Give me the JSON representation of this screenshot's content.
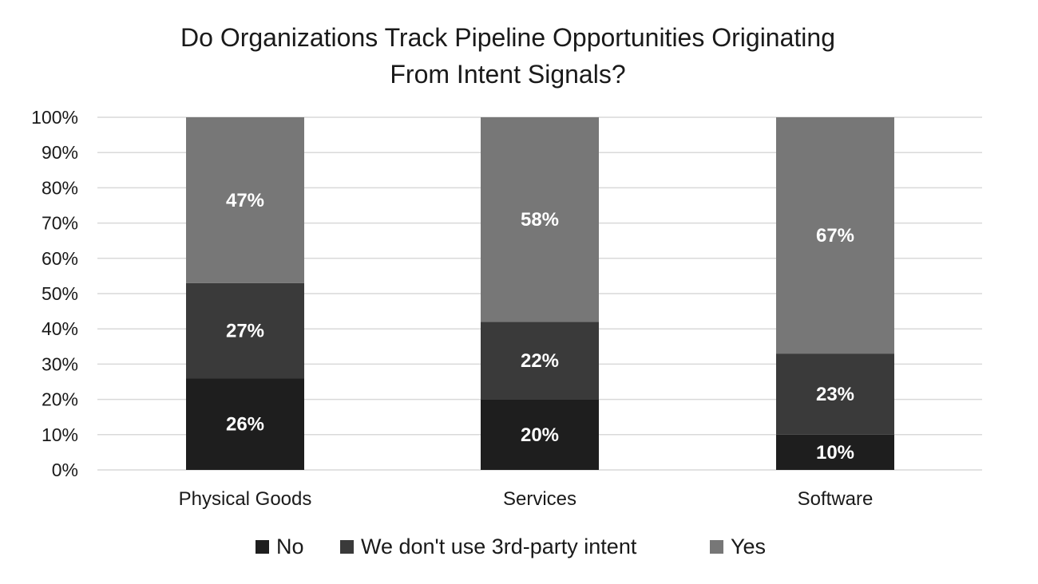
{
  "chart_data": {
    "type": "bar",
    "stacked": true,
    "title_lines": [
      "Do Organizations Track Pipeline Opportunities Originating",
      "From Intent Signals?"
    ],
    "categories": [
      "Physical Goods",
      "Services",
      "Software"
    ],
    "series": [
      {
        "name": "No",
        "values": [
          26,
          20,
          10
        ],
        "labels": [
          "26%",
          "20%",
          "10%"
        ],
        "color": "#1e1e1e"
      },
      {
        "name": "We don't use 3rd-party intent",
        "values": [
          27,
          22,
          23
        ],
        "labels": [
          "27%",
          "22%",
          "23%"
        ],
        "color": "#3a3a3a"
      },
      {
        "name": "Yes",
        "values": [
          47,
          58,
          67
        ],
        "labels": [
          "47%",
          "58%",
          "67%"
        ],
        "color": "#777777"
      }
    ],
    "ylim": [
      0,
      100
    ],
    "yticks": [
      0,
      10,
      20,
      30,
      40,
      50,
      60,
      70,
      80,
      90,
      100
    ],
    "ytick_labels": [
      "0%",
      "10%",
      "20%",
      "30%",
      "40%",
      "50%",
      "60%",
      "70%",
      "80%",
      "90%",
      "100%"
    ],
    "grid": true,
    "grid_color": "#d9d9d9",
    "legend_position": "bottom"
  }
}
